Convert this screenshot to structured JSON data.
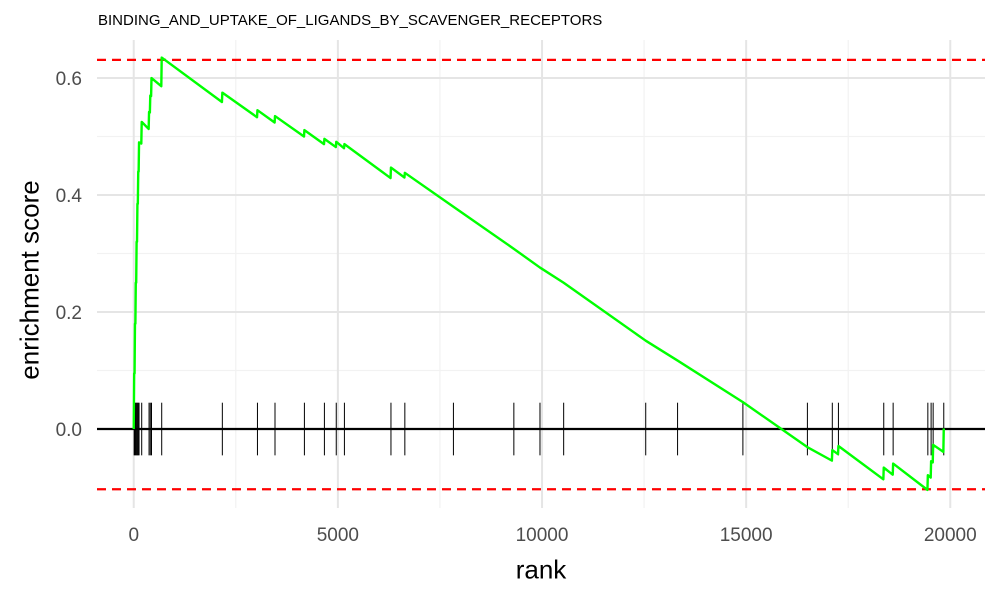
{
  "chart_data": {
    "type": "line",
    "title": "BINDING_AND_UPTAKE_OF_LIGANDS_BY_SCAVENGER_RECEPTORS",
    "xlabel": "rank",
    "ylabel": "enrichment score",
    "xlim": [
      -900,
      20850
    ],
    "ylim": [
      -0.135,
      0.665
    ],
    "xticks": [
      0,
      5000,
      10000,
      15000,
      20000
    ],
    "xtick_labels": [
      "0",
      "5000",
      "10000",
      "15000",
      "20000"
    ],
    "yticks": [
      0.0,
      0.2,
      0.4,
      0.6
    ],
    "ytick_labels": [
      "0.0",
      "0.2",
      "0.4",
      "0.6"
    ],
    "grid": true,
    "line_color": "#00ff00",
    "threshold_color": "#ff0000",
    "thresholds": [
      0.631,
      -0.103
    ],
    "zero_line": 0.0,
    "series": [
      {
        "values": [
          [
            0,
            0.0
          ],
          [
            10,
            0.095
          ],
          [
            20,
            0.095
          ],
          [
            30,
            0.18
          ],
          [
            40,
            0.18
          ],
          [
            50,
            0.25
          ],
          [
            60,
            0.25
          ],
          [
            70,
            0.32
          ],
          [
            80,
            0.32
          ],
          [
            90,
            0.385
          ],
          [
            100,
            0.385
          ],
          [
            110,
            0.44
          ],
          [
            120,
            0.44
          ],
          [
            130,
            0.49
          ],
          [
            185,
            0.488
          ],
          [
            195,
            0.525
          ],
          [
            365,
            0.513
          ],
          [
            375,
            0.542
          ],
          [
            395,
            0.541
          ],
          [
            405,
            0.57
          ],
          [
            425,
            0.569
          ],
          [
            435,
            0.6
          ],
          [
            675,
            0.586
          ],
          [
            685,
            0.635
          ],
          [
            2160,
            0.559
          ],
          [
            2170,
            0.575
          ],
          [
            3020,
            0.533
          ],
          [
            3030,
            0.545
          ],
          [
            3450,
            0.524
          ],
          [
            3460,
            0.535
          ],
          [
            4170,
            0.5
          ],
          [
            4180,
            0.511
          ],
          [
            4660,
            0.487
          ],
          [
            4670,
            0.496
          ],
          [
            4950,
            0.482
          ],
          [
            4960,
            0.491
          ],
          [
            5150,
            0.48
          ],
          [
            5160,
            0.487
          ],
          [
            6290,
            0.429
          ],
          [
            6300,
            0.447
          ],
          [
            6630,
            0.43
          ],
          [
            6640,
            0.438
          ],
          [
            7830,
            0.38
          ],
          [
            9310,
            0.308
          ],
          [
            9950,
            0.276
          ],
          [
            10530,
            0.25
          ],
          [
            12540,
            0.151
          ],
          [
            13320,
            0.117
          ],
          [
            14920,
            0.046
          ],
          [
            16500,
            -0.031
          ],
          [
            17100,
            -0.054
          ],
          [
            17110,
            -0.036
          ],
          [
            17250,
            -0.043
          ],
          [
            17260,
            -0.029
          ],
          [
            18360,
            -0.086
          ],
          [
            18370,
            -0.066
          ],
          [
            18590,
            -0.078
          ],
          [
            18600,
            -0.059
          ],
          [
            19440,
            -0.104
          ],
          [
            19450,
            -0.079
          ],
          [
            19520,
            -0.083
          ],
          [
            19530,
            -0.055
          ],
          [
            19570,
            -0.057
          ],
          [
            19580,
            -0.027
          ],
          [
            19830,
            -0.039
          ],
          [
            19840,
            0.001
          ]
        ]
      }
    ],
    "hit_ranks": [
      10,
      30,
      50,
      70,
      90,
      110,
      130,
      195,
      375,
      405,
      435,
      685,
      2170,
      3030,
      3460,
      4180,
      4670,
      4960,
      5160,
      6300,
      6640,
      7830,
      9310,
      9950,
      10530,
      12540,
      13320,
      14920,
      16500,
      17110,
      17260,
      18370,
      18600,
      19450,
      19530,
      19580,
      19840
    ]
  }
}
